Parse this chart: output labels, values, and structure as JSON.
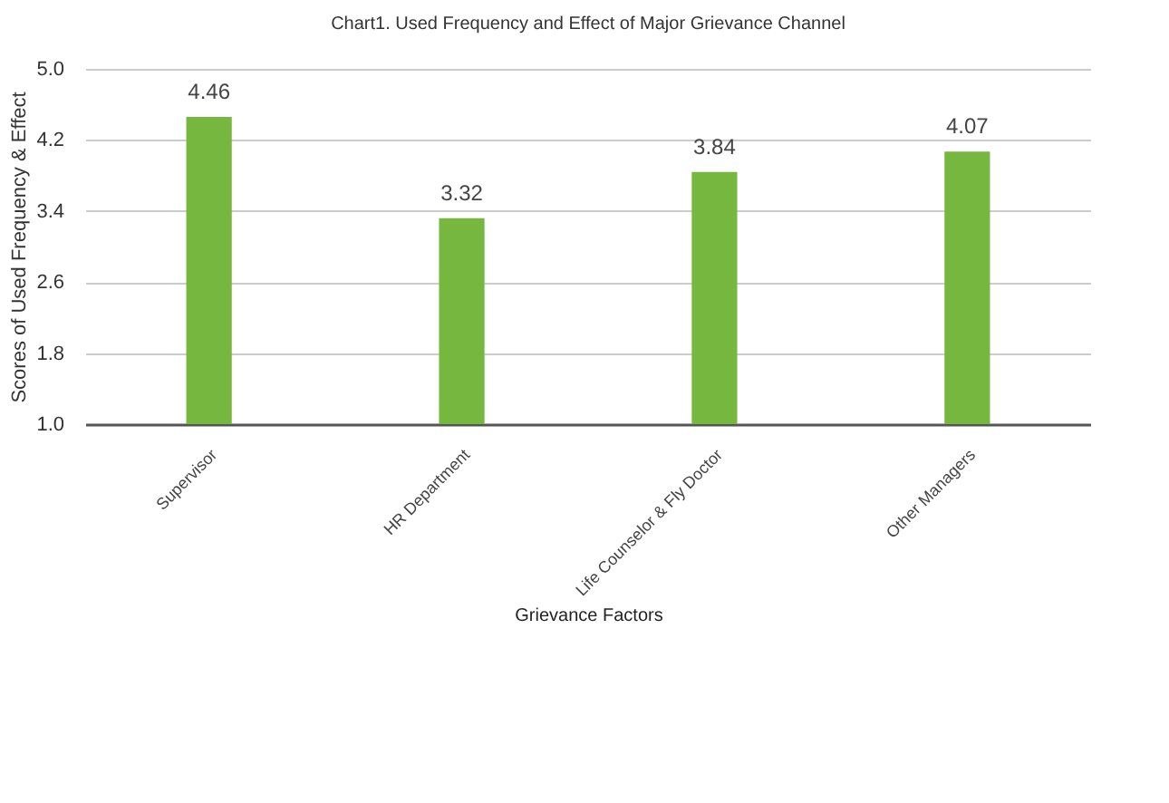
{
  "chart_data": {
    "type": "bar",
    "title": "Chart1. Used Frequency and Effect of Major Grievance Channel",
    "xlabel": "Grievance Factors",
    "ylabel": "Scores of Used Frequency & Effect",
    "categories": [
      "Supervisor",
      "HR Department",
      "Life Counselor & Fly Doctor",
      "Other Managers"
    ],
    "values": [
      4.46,
      3.32,
      3.84,
      4.07
    ],
    "color": "#76b83f",
    "ylim": [
      1.0,
      5.0
    ],
    "yticks": [
      {
        "value": 1.0,
        "label": "1.0"
      },
      {
        "value": 1.8,
        "label": "1.8"
      },
      {
        "value": 2.6,
        "label": "2.6"
      },
      {
        "value": 3.4,
        "label": "3.4"
      },
      {
        "value": 4.2,
        "label": "4.2"
      },
      {
        "value": 5.0,
        "label": "5.0"
      }
    ],
    "grid": "y",
    "data_labels": true
  }
}
